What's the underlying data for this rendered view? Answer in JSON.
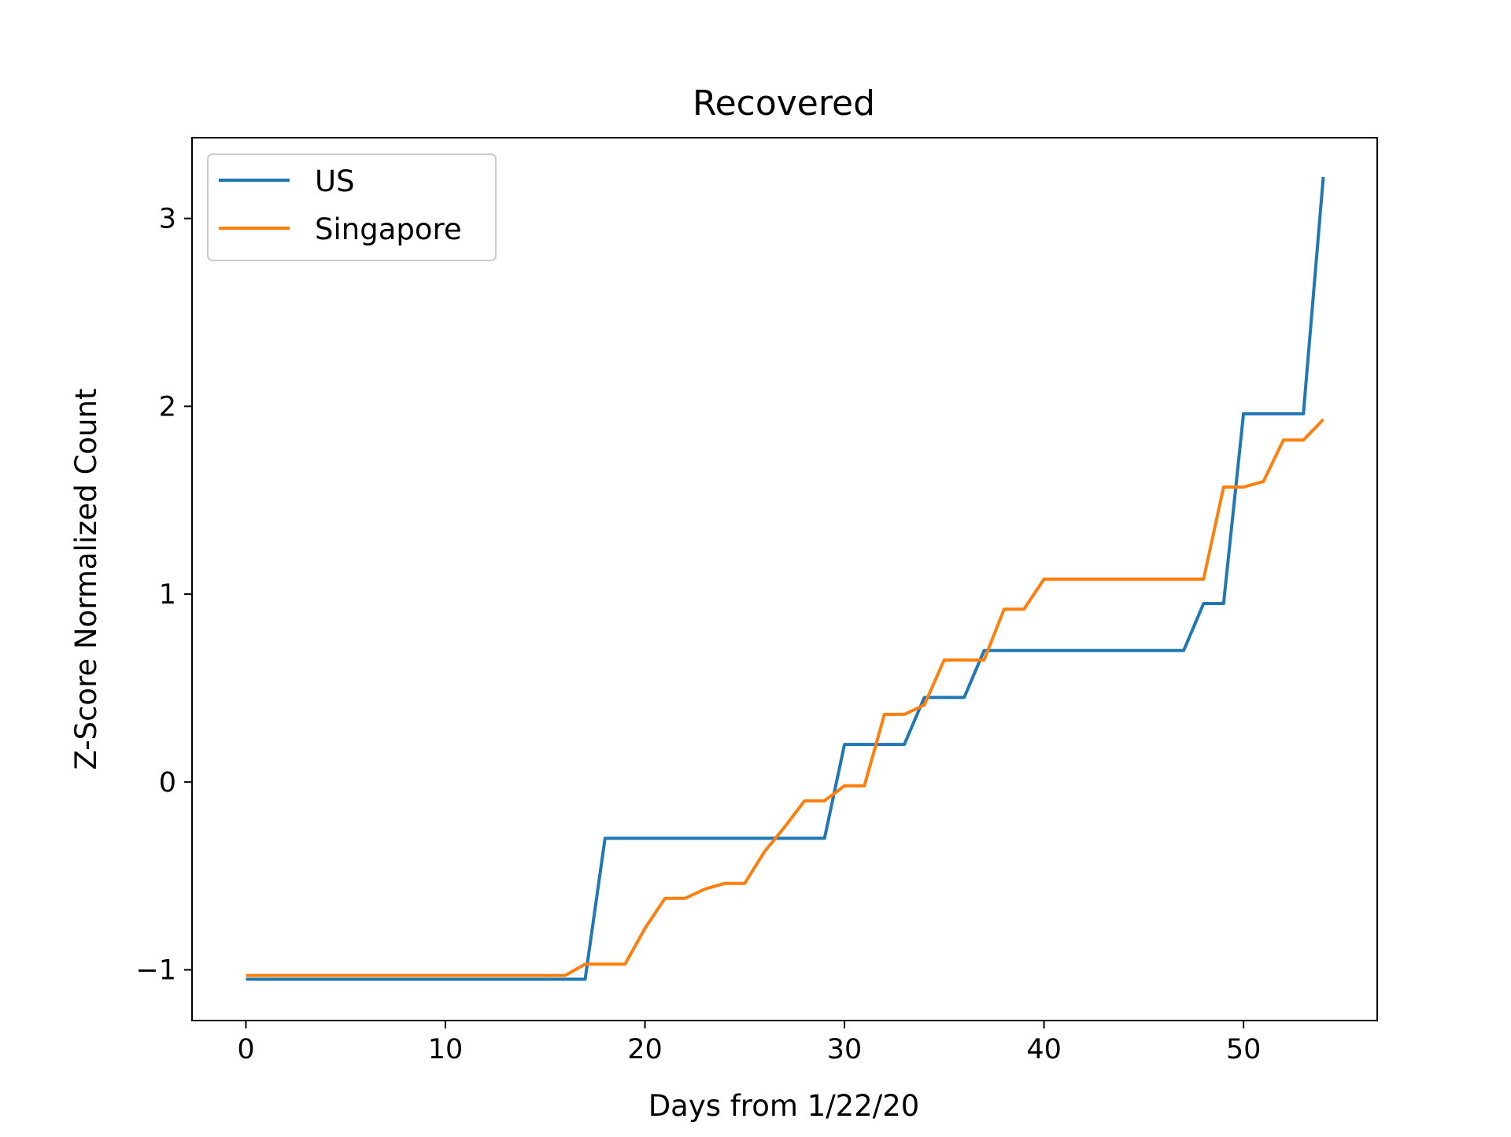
{
  "chart_data": {
    "type": "line",
    "title": "Recovered",
    "xlabel": "Days from 1/22/20",
    "ylabel": "Z-Score Normalized Count",
    "xlim": [
      -2.7,
      56.7
    ],
    "ylim": [
      -1.27,
      3.43
    ],
    "xticks": [
      0,
      10,
      20,
      30,
      40,
      50
    ],
    "xtick_labels": [
      "0",
      "10",
      "20",
      "30",
      "40",
      "50"
    ],
    "yticks": [
      -1,
      0,
      1,
      2,
      3
    ],
    "ytick_labels": [
      "−1",
      "0",
      "1",
      "2",
      "3"
    ],
    "grid": false,
    "legend_position": "upper-left",
    "series": [
      {
        "name": "US",
        "color": "#1f77b4",
        "points": [
          [
            0,
            -1.05
          ],
          [
            17,
            -1.05
          ],
          [
            18,
            -0.3
          ],
          [
            29,
            -0.3
          ],
          [
            30,
            0.2
          ],
          [
            33,
            0.2
          ],
          [
            34,
            0.45
          ],
          [
            36,
            0.45
          ],
          [
            37,
            0.7
          ],
          [
            47,
            0.7
          ],
          [
            48,
            0.95
          ],
          [
            49,
            0.95
          ],
          [
            50,
            1.96
          ],
          [
            53,
            1.96
          ],
          [
            54,
            3.22
          ]
        ]
      },
      {
        "name": "Singapore",
        "color": "#ff7f0e",
        "points": [
          [
            0,
            -1.03
          ],
          [
            16,
            -1.03
          ],
          [
            17,
            -0.97
          ],
          [
            19,
            -0.97
          ],
          [
            20,
            -0.78
          ],
          [
            21,
            -0.62
          ],
          [
            22,
            -0.62
          ],
          [
            23,
            -0.57
          ],
          [
            24,
            -0.54
          ],
          [
            25,
            -0.54
          ],
          [
            26,
            -0.37
          ],
          [
            27,
            -0.24
          ],
          [
            28,
            -0.1
          ],
          [
            29,
            -0.1
          ],
          [
            30,
            -0.02
          ],
          [
            31,
            -0.02
          ],
          [
            32,
            0.36
          ],
          [
            33,
            0.36
          ],
          [
            34,
            0.41
          ],
          [
            35,
            0.65
          ],
          [
            36,
            0.65
          ],
          [
            37,
            0.65
          ],
          [
            38,
            0.92
          ],
          [
            39,
            0.92
          ],
          [
            40,
            1.08
          ],
          [
            48,
            1.08
          ],
          [
            49,
            1.57
          ],
          [
            50,
            1.57
          ],
          [
            51,
            1.6
          ],
          [
            52,
            1.82
          ],
          [
            53,
            1.82
          ],
          [
            54,
            1.93
          ]
        ]
      }
    ]
  }
}
